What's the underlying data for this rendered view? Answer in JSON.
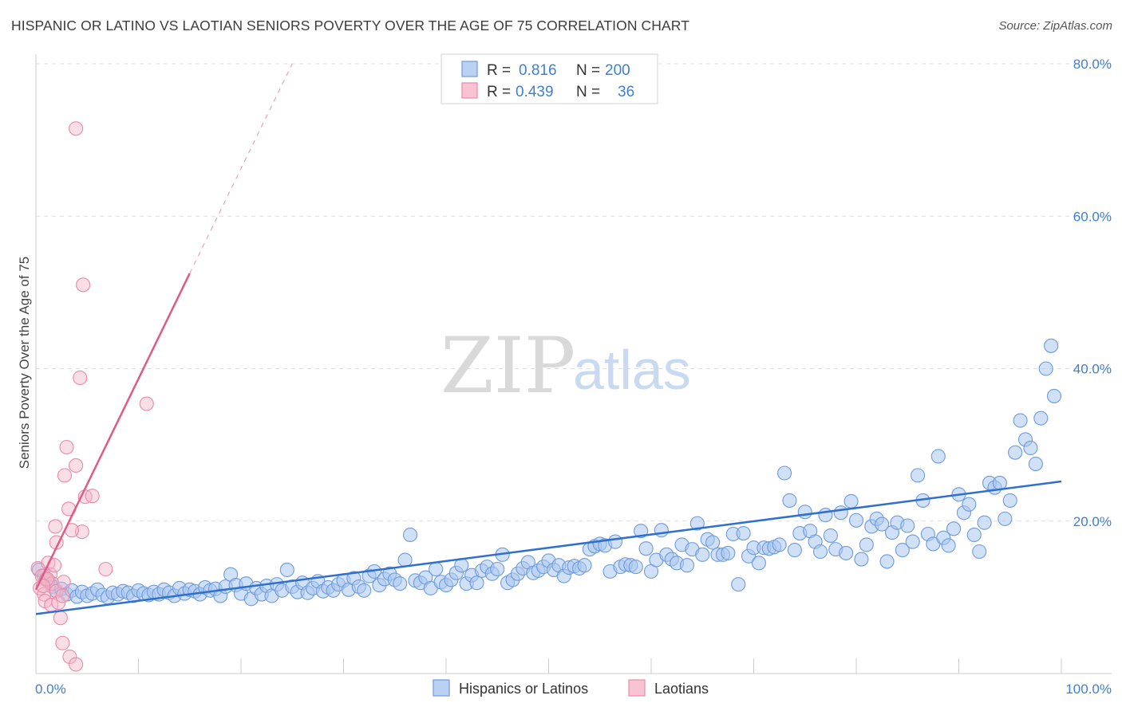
{
  "title": "HISPANIC OR LATINO VS LAOTIAN SENIORS POVERTY OVER THE AGE OF 75 CORRELATION CHART",
  "source": "Source: ZipAtlas.com",
  "watermark": {
    "zip": "ZIP",
    "atlas": "atlas"
  },
  "colors": {
    "blue": "#5b8fd6",
    "blue_fill": "#a9c7f0",
    "pink": "#e86a93",
    "pink_fill": "#f5b5c8",
    "tick_text": "#3f7fcf"
  },
  "legend": {
    "rows": [
      {
        "r_label": "R = ",
        "r_value": "0.816",
        "n_label": "N = ",
        "n_value": "200"
      },
      {
        "r_label": "R = ",
        "r_value": "0.439",
        "n_label": "N = ",
        "n_value": "36"
      }
    ]
  },
  "chart_data": {
    "type": "scatter",
    "title": "HISPANIC OR LATINO VS LAOTIAN SENIORS POVERTY OVER THE AGE OF 75 CORRELATION CHART",
    "xlabel": "",
    "ylabel": "Seniors Poverty Over the Age of 75",
    "xlim": [
      0,
      100
    ],
    "ylim": [
      0,
      80
    ],
    "x_tick_labels": [
      "0.0%",
      "100.0%"
    ],
    "y_ticks": [
      20,
      40,
      60,
      80
    ],
    "y_tick_labels": [
      "20.0%",
      "40.0%",
      "60.0%",
      "80.0%"
    ],
    "grid": true,
    "legend_position": "top-center",
    "series": [
      {
        "name": "Hispanics or Latinos",
        "color": "#5b8fd6",
        "r": 0.816,
        "n": 200,
        "trend": {
          "x": [
            0,
            100
          ],
          "y": [
            7.8,
            25.2
          ],
          "style": "solid"
        },
        "points": [
          [
            0.3,
            13.6
          ],
          [
            0.8,
            12.8
          ],
          [
            1.2,
            12.2
          ],
          [
            1.6,
            11.4
          ],
          [
            2.0,
            10.8
          ],
          [
            2.5,
            11.1
          ],
          [
            3.0,
            10.4
          ],
          [
            3.5,
            10.9
          ],
          [
            4.0,
            10.1
          ],
          [
            4.5,
            10.7
          ],
          [
            5.0,
            10.2
          ],
          [
            5.5,
            10.5
          ],
          [
            6.0,
            11.0
          ],
          [
            6.5,
            10.3
          ],
          [
            7.0,
            10.0
          ],
          [
            7.5,
            10.6
          ],
          [
            8.0,
            10.4
          ],
          [
            8.5,
            10.8
          ],
          [
            9.0,
            10.6
          ],
          [
            9.5,
            10.2
          ],
          [
            10.0,
            10.9
          ],
          [
            10.5,
            10.5
          ],
          [
            11.0,
            10.3
          ],
          [
            11.5,
            10.7
          ],
          [
            12.0,
            10.4
          ],
          [
            12.5,
            11.0
          ],
          [
            13.0,
            10.6
          ],
          [
            13.5,
            10.2
          ],
          [
            14.0,
            11.2
          ],
          [
            14.5,
            10.5
          ],
          [
            15.0,
            11.0
          ],
          [
            15.5,
            10.8
          ],
          [
            16.0,
            10.4
          ],
          [
            16.5,
            11.3
          ],
          [
            17.0,
            10.9
          ],
          [
            17.5,
            11.1
          ],
          [
            18.0,
            10.2
          ],
          [
            18.5,
            11.4
          ],
          [
            19.0,
            13.0
          ],
          [
            19.5,
            11.6
          ],
          [
            20.0,
            10.5
          ],
          [
            20.5,
            11.8
          ],
          [
            21.0,
            9.8
          ],
          [
            21.5,
            11.2
          ],
          [
            22.0,
            10.4
          ],
          [
            22.5,
            11.5
          ],
          [
            23.0,
            10.2
          ],
          [
            23.5,
            11.7
          ],
          [
            24.0,
            10.9
          ],
          [
            24.5,
            13.6
          ],
          [
            25.0,
            11.4
          ],
          [
            25.5,
            10.7
          ],
          [
            26.0,
            11.9
          ],
          [
            26.5,
            10.6
          ],
          [
            27.0,
            11.2
          ],
          [
            27.5,
            12.1
          ],
          [
            28.0,
            10.8
          ],
          [
            28.5,
            11.3
          ],
          [
            29.0,
            10.9
          ],
          [
            29.5,
            11.7
          ],
          [
            30.0,
            12.2
          ],
          [
            30.5,
            11.0
          ],
          [
            31.0,
            12.5
          ],
          [
            31.5,
            11.4
          ],
          [
            32.0,
            10.9
          ],
          [
            32.5,
            12.8
          ],
          [
            33.0,
            13.4
          ],
          [
            33.5,
            11.6
          ],
          [
            34.0,
            12.4
          ],
          [
            34.5,
            13.1
          ],
          [
            35.0,
            12.3
          ],
          [
            35.5,
            11.8
          ],
          [
            36.0,
            14.9
          ],
          [
            36.5,
            18.2
          ],
          [
            37.0,
            12.2
          ],
          [
            37.5,
            11.9
          ],
          [
            38.0,
            12.6
          ],
          [
            38.5,
            11.2
          ],
          [
            39.0,
            13.7
          ],
          [
            39.5,
            12.0
          ],
          [
            40.0,
            11.6
          ],
          [
            40.5,
            12.3
          ],
          [
            41.0,
            13.2
          ],
          [
            41.5,
            14.2
          ],
          [
            42.0,
            11.8
          ],
          [
            42.5,
            12.9
          ],
          [
            43.0,
            11.9
          ],
          [
            43.5,
            13.5
          ],
          [
            44.0,
            14.0
          ],
          [
            44.5,
            13.1
          ],
          [
            45.0,
            13.7
          ],
          [
            45.5,
            15.6
          ],
          [
            46.0,
            11.9
          ],
          [
            46.5,
            12.3
          ],
          [
            47.0,
            13.1
          ],
          [
            47.5,
            13.8
          ],
          [
            48.0,
            14.6
          ],
          [
            48.5,
            13.2
          ],
          [
            49.0,
            13.5
          ],
          [
            49.5,
            14.0
          ],
          [
            50.0,
            14.8
          ],
          [
            50.5,
            13.6
          ],
          [
            51.0,
            14.2
          ],
          [
            51.5,
            12.8
          ],
          [
            52.0,
            13.9
          ],
          [
            52.5,
            14.1
          ],
          [
            53.0,
            13.8
          ],
          [
            53.5,
            14.2
          ],
          [
            54.0,
            16.3
          ],
          [
            54.5,
            16.7
          ],
          [
            55.0,
            17.0
          ],
          [
            55.5,
            16.8
          ],
          [
            56.0,
            13.4
          ],
          [
            56.5,
            17.3
          ],
          [
            57.0,
            14.0
          ],
          [
            57.5,
            14.3
          ],
          [
            58.0,
            14.2
          ],
          [
            58.5,
            14.0
          ],
          [
            59.0,
            18.7
          ],
          [
            59.5,
            16.4
          ],
          [
            60.0,
            13.4
          ],
          [
            60.5,
            14.9
          ],
          [
            61.0,
            18.8
          ],
          [
            61.5,
            15.6
          ],
          [
            62.0,
            15.0
          ],
          [
            62.5,
            14.5
          ],
          [
            63.0,
            16.9
          ],
          [
            63.5,
            14.2
          ],
          [
            64.0,
            16.3
          ],
          [
            64.5,
            19.7
          ],
          [
            65.0,
            15.6
          ],
          [
            65.5,
            17.6
          ],
          [
            66.0,
            17.2
          ],
          [
            66.5,
            15.6
          ],
          [
            67.0,
            15.6
          ],
          [
            67.5,
            15.8
          ],
          [
            68.0,
            18.3
          ],
          [
            68.5,
            11.7
          ],
          [
            69.0,
            18.4
          ],
          [
            69.5,
            15.4
          ],
          [
            70.0,
            16.5
          ],
          [
            70.5,
            14.5
          ],
          [
            71.0,
            16.5
          ],
          [
            71.5,
            16.4
          ],
          [
            72.0,
            16.6
          ],
          [
            72.5,
            16.9
          ],
          [
            73.0,
            26.3
          ],
          [
            73.5,
            22.7
          ],
          [
            74.0,
            16.2
          ],
          [
            74.5,
            18.4
          ],
          [
            75.0,
            21.2
          ],
          [
            75.5,
            18.7
          ],
          [
            76.0,
            17.3
          ],
          [
            76.5,
            16.0
          ],
          [
            77.0,
            20.8
          ],
          [
            77.5,
            18.1
          ],
          [
            78.0,
            16.3
          ],
          [
            78.5,
            21.1
          ],
          [
            79.0,
            15.8
          ],
          [
            79.5,
            22.6
          ],
          [
            80.0,
            20.1
          ],
          [
            80.5,
            15.0
          ],
          [
            81.0,
            16.9
          ],
          [
            81.5,
            19.3
          ],
          [
            82.0,
            20.3
          ],
          [
            82.5,
            19.6
          ],
          [
            83.0,
            14.7
          ],
          [
            83.5,
            18.5
          ],
          [
            84.0,
            19.8
          ],
          [
            84.5,
            16.2
          ],
          [
            85.0,
            19.4
          ],
          [
            85.5,
            17.3
          ],
          [
            86.0,
            26.0
          ],
          [
            86.5,
            22.7
          ],
          [
            87.0,
            18.3
          ],
          [
            87.5,
            17.0
          ],
          [
            88.0,
            28.5
          ],
          [
            88.5,
            17.8
          ],
          [
            89.0,
            16.8
          ],
          [
            89.5,
            19.0
          ],
          [
            90.0,
            23.5
          ],
          [
            90.5,
            21.1
          ],
          [
            91.0,
            22.2
          ],
          [
            91.5,
            18.2
          ],
          [
            92.0,
            16.0
          ],
          [
            92.5,
            19.8
          ],
          [
            93.0,
            25.0
          ],
          [
            93.5,
            24.4
          ],
          [
            94.0,
            25.0
          ],
          [
            94.5,
            20.3
          ],
          [
            95.0,
            22.7
          ],
          [
            95.5,
            29.0
          ],
          [
            96.0,
            33.2
          ],
          [
            96.5,
            30.7
          ],
          [
            97.0,
            29.6
          ],
          [
            97.5,
            27.5
          ],
          [
            98.0,
            33.5
          ],
          [
            98.5,
            40.0
          ],
          [
            99.0,
            43.0
          ],
          [
            99.3,
            36.4
          ]
        ]
      },
      {
        "name": "Laotians",
        "color": "#e86a93",
        "r": 0.439,
        "n": 36,
        "trend": {
          "x": [
            0,
            15
          ],
          "y": [
            11.0,
            52.5
          ],
          "style": "solid",
          "extension": {
            "x": [
              15,
              25
            ],
            "y": [
              52.5,
              80.0
            ],
            "style": "dashed"
          }
        },
        "points": [
          [
            0.2,
            13.8
          ],
          [
            0.4,
            11.2
          ],
          [
            0.6,
            12.8
          ],
          [
            0.8,
            10.4
          ],
          [
            1.0,
            12.3
          ],
          [
            1.2,
            14.5
          ],
          [
            1.4,
            13.0
          ],
          [
            1.6,
            11.8
          ],
          [
            1.8,
            14.2
          ],
          [
            2.0,
            10.8
          ],
          [
            0.9,
            9.5
          ],
          [
            1.5,
            9.0
          ],
          [
            2.2,
            9.3
          ],
          [
            2.4,
            7.3
          ],
          [
            2.6,
            4.0
          ],
          [
            3.3,
            2.2
          ],
          [
            3.9,
            1.2
          ],
          [
            1.1,
            12.4
          ],
          [
            0.7,
            11.5
          ],
          [
            2.0,
            17.2
          ],
          [
            1.9,
            19.3
          ],
          [
            3.2,
            21.6
          ],
          [
            4.5,
            18.6
          ],
          [
            2.8,
            26.0
          ],
          [
            3.9,
            27.3
          ],
          [
            3.0,
            29.7
          ],
          [
            4.8,
            23.2
          ],
          [
            5.5,
            23.3
          ],
          [
            4.3,
            38.8
          ],
          [
            10.8,
            35.4
          ],
          [
            4.6,
            51.0
          ],
          [
            3.9,
            71.5
          ],
          [
            3.5,
            18.8
          ],
          [
            6.8,
            13.7
          ],
          [
            2.6,
            10.2
          ],
          [
            2.7,
            12.0
          ]
        ]
      }
    ]
  },
  "bottom_legend": [
    {
      "label": "Hispanics or Latinos"
    },
    {
      "label": "Laotians"
    }
  ]
}
